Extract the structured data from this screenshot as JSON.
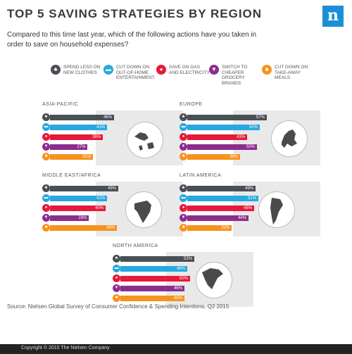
{
  "title": "TOP 5 SAVING STRATEGIES BY REGION",
  "subtitle": "Compared to this time last year, which of the following actions have you taken in order to save on household expenses?",
  "logo_text": "n",
  "source": "Source: Nielsen Global Survey of Consumer Confidence & Spending Intentions, Q2 2015",
  "copyright": "Copyright © 2015 The Nielsen Company",
  "legend": [
    {
      "label": "SPEND LESS ON NEW CLOTHES",
      "icon": "shirt-icon",
      "glyph": "♣",
      "color": "#4a4e55"
    },
    {
      "label": "CUT DOWN ON OUT-OF-HOME ENTERTAINMENT",
      "icon": "ticket-icon",
      "glyph": "▬",
      "color": "#27a8e0"
    },
    {
      "label": "SAVE ON GAS AND ELECTRICITY",
      "icon": "piggy-bank-icon",
      "glyph": "●",
      "color": "#e5193b"
    },
    {
      "label": "SWITCH TO CHEAPER GROCERY BRANDS",
      "icon": "shopping-cart-icon",
      "glyph": "▼",
      "color": "#8b2d8f"
    },
    {
      "label": "CUT DOWN ON TAKE-AWAY MEALS",
      "icon": "meal-icon",
      "glyph": "■",
      "color": "#f7931d"
    }
  ],
  "chart_data": [
    {
      "type": "bar",
      "title": "ASIA-PACIFIC",
      "categories": [
        "SPEND LESS ON NEW CLOTHES",
        "CUT DOWN ON OUT-OF-HOME ENTERTAINMENT",
        "SAVE ON GAS AND ELECTRICITY",
        "SWITCH TO CHEAPER GROCERY BRANDS",
        "CUT DOWN ON TAKE-AWAY MEALS"
      ],
      "values": [
        46,
        41,
        38,
        27,
        31
      ],
      "labels": [
        "46%",
        "41%",
        "38%",
        "27%",
        "31%"
      ],
      "map": "asia-pacific-map"
    },
    {
      "type": "bar",
      "title": "EUROPE",
      "categories": [
        "SPEND LESS ON NEW CLOTHES",
        "CUT DOWN ON OUT-OF-HOME ENTERTAINMENT",
        "SAVE ON GAS AND ELECTRICITY",
        "SWITCH TO CHEAPER GROCERY BRANDS",
        "CUT DOWN ON TAKE-AWAY MEALS"
      ],
      "values": [
        57,
        52,
        43,
        50,
        38
      ],
      "labels": [
        "57%",
        "52%",
        "43%",
        "50%",
        "38%"
      ],
      "map": "europe-map"
    },
    {
      "type": "bar",
      "title": "MIDDLE EAST/AFRICA",
      "categories": [
        "SPEND LESS ON NEW CLOTHES",
        "CUT DOWN ON OUT-OF-HOME ENTERTAINMENT",
        "SAVE ON GAS AND ELECTRICITY",
        "SWITCH TO CHEAPER GROCERY BRANDS",
        "CUT DOWN ON TAKE-AWAY MEALS"
      ],
      "values": [
        49,
        41,
        40,
        28,
        48
      ],
      "labels": [
        "49%",
        "41%",
        "40%",
        "28%",
        "48%"
      ],
      "map": "africa-map"
    },
    {
      "type": "bar",
      "title": "LATIN AMERICA",
      "categories": [
        "SPEND LESS ON NEW CLOTHES",
        "CUT DOWN ON OUT-OF-HOME ENTERTAINMENT",
        "SAVE ON GAS AND ELECTRICITY",
        "SWITCH TO CHEAPER GROCERY BRANDS",
        "CUT DOWN ON TAKE-AWAY MEALS"
      ],
      "values": [
        49,
        51,
        48,
        44,
        32
      ],
      "labels": [
        "49%",
        "51%",
        "48%",
        "44%",
        "32%"
      ],
      "map": "south-america-map"
    },
    {
      "type": "bar",
      "title": "NORTH AMERICA",
      "categories": [
        "SPEND LESS ON NEW CLOTHES",
        "CUT DOWN ON OUT-OF-HOME ENTERTAINMENT",
        "SAVE ON GAS AND ELECTRICITY",
        "SWITCH TO CHEAPER GROCERY BRANDS",
        "CUT DOWN ON TAKE-AWAY MEALS"
      ],
      "values": [
        53,
        48,
        50,
        46,
        46
      ],
      "labels": [
        "53%",
        "48%",
        "50%",
        "46%",
        "46%"
      ],
      "map": "north-america-map"
    }
  ]
}
